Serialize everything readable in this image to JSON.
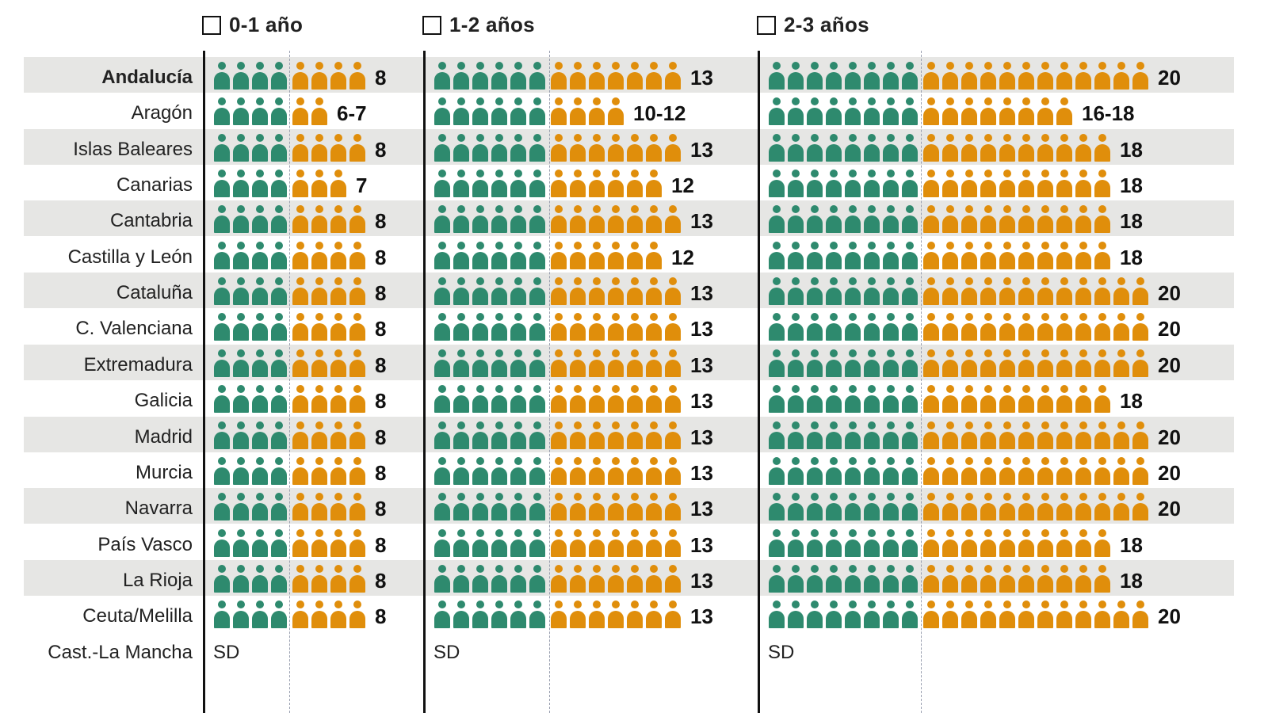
{
  "colors": {
    "base": "#2e8a6e",
    "extra": "#e08e0b",
    "band": "#e6e6e4"
  },
  "groups": [
    {
      "label": "0-1 año",
      "green_icons": 4
    },
    {
      "label": "1-2 años",
      "green_icons": 6
    },
    {
      "label": "2-3 años",
      "green_icons": 8
    }
  ],
  "chart_data": {
    "type": "pictogram",
    "categories": [
      "Andalucía",
      "Aragón",
      "Islas Baleares",
      "Canarias",
      "Cantabria",
      "Castilla y León",
      "Cataluña",
      "C. Valenciana",
      "Extremadura",
      "Galicia",
      "Madrid",
      "Murcia",
      "Navarra",
      "País Vasco",
      "La Rioja",
      "Ceuta/Melilla",
      "Cast.-La Mancha"
    ],
    "series": [
      {
        "name": "0-1 año",
        "values": [
          "8",
          "6-7",
          "8",
          "7",
          "8",
          "8",
          "8",
          "8",
          "8",
          "8",
          "8",
          "8",
          "8",
          "8",
          "8",
          "8",
          "SD"
        ]
      },
      {
        "name": "1-2 años",
        "values": [
          "13",
          "10-12",
          "13",
          "12",
          "13",
          "12",
          "13",
          "13",
          "13",
          "13",
          "13",
          "13",
          "13",
          "13",
          "13",
          "13",
          "SD"
        ]
      },
      {
        "name": "2-3 años",
        "values": [
          "20",
          "16-18",
          "18",
          "18",
          "18",
          "18",
          "20",
          "20",
          "20",
          "18",
          "20",
          "20",
          "20",
          "18",
          "18",
          "20",
          "SD"
        ]
      }
    ],
    "icon_counts": [
      [
        8,
        6,
        8,
        7,
        8,
        8,
        8,
        8,
        8,
        8,
        8,
        8,
        8,
        8,
        8,
        8,
        0
      ],
      [
        13,
        10,
        13,
        12,
        13,
        12,
        13,
        13,
        13,
        13,
        13,
        13,
        13,
        13,
        13,
        13,
        0
      ],
      [
        20,
        16,
        18,
        18,
        18,
        18,
        20,
        20,
        20,
        18,
        20,
        20,
        20,
        18,
        18,
        20,
        0
      ]
    ],
    "highlight": "Andalucía"
  }
}
